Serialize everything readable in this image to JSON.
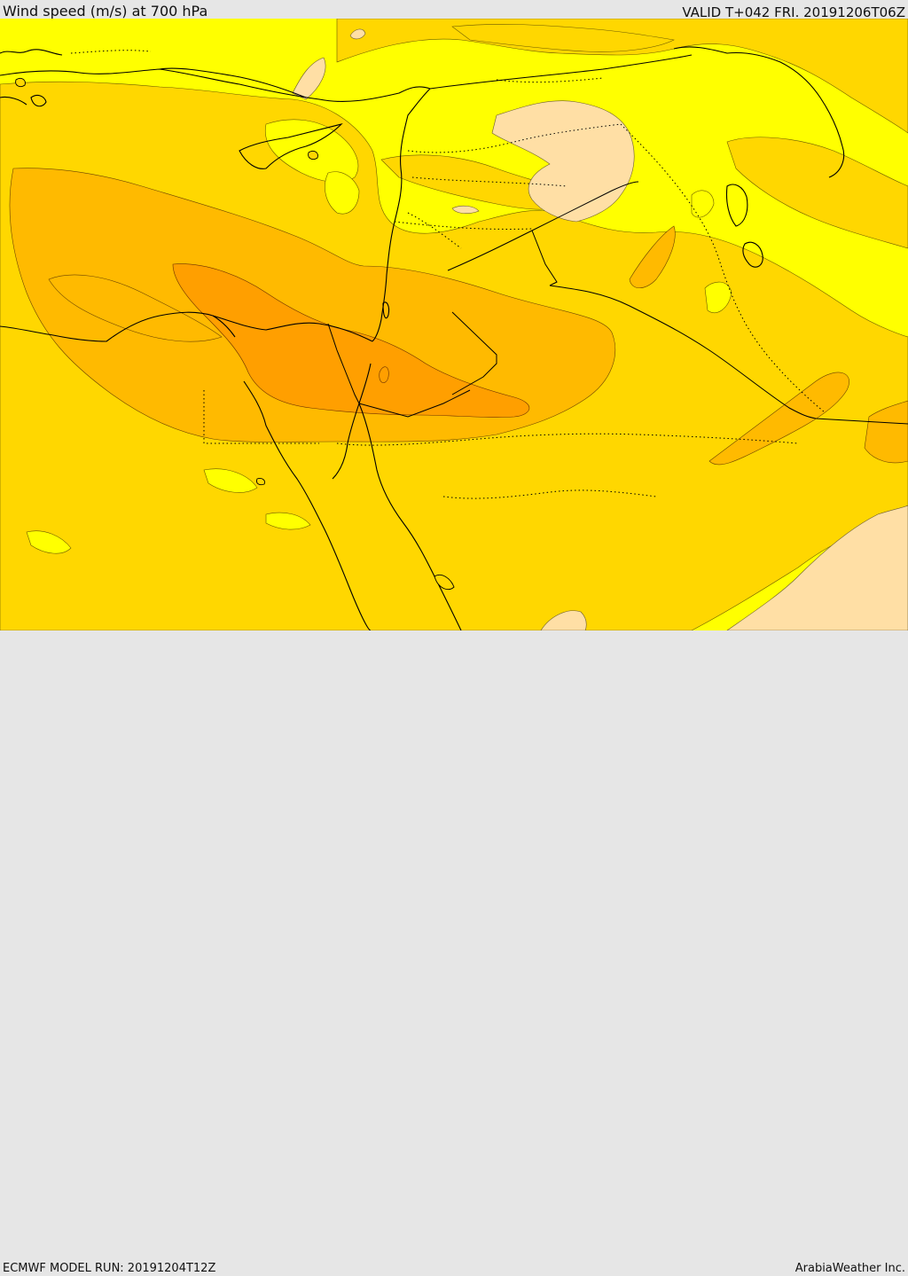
{
  "header": {
    "title": "Wind speed (m/s) at 700 hPa",
    "valid_time": "VALID T+042 FRI. 20191206T06Z"
  },
  "footer": {
    "model_run": "ECMWF MODEL RUN: 20191204T12Z",
    "credit": "ArabiaWeather Inc."
  },
  "colors": {
    "level_1": "#ffff00",
    "level_2": "#ffd700",
    "level_3": "#ffba00",
    "level_4": "#ff9f00",
    "level_5": "#ffdfa5",
    "coastline": "#000000",
    "border": "#000000"
  }
}
